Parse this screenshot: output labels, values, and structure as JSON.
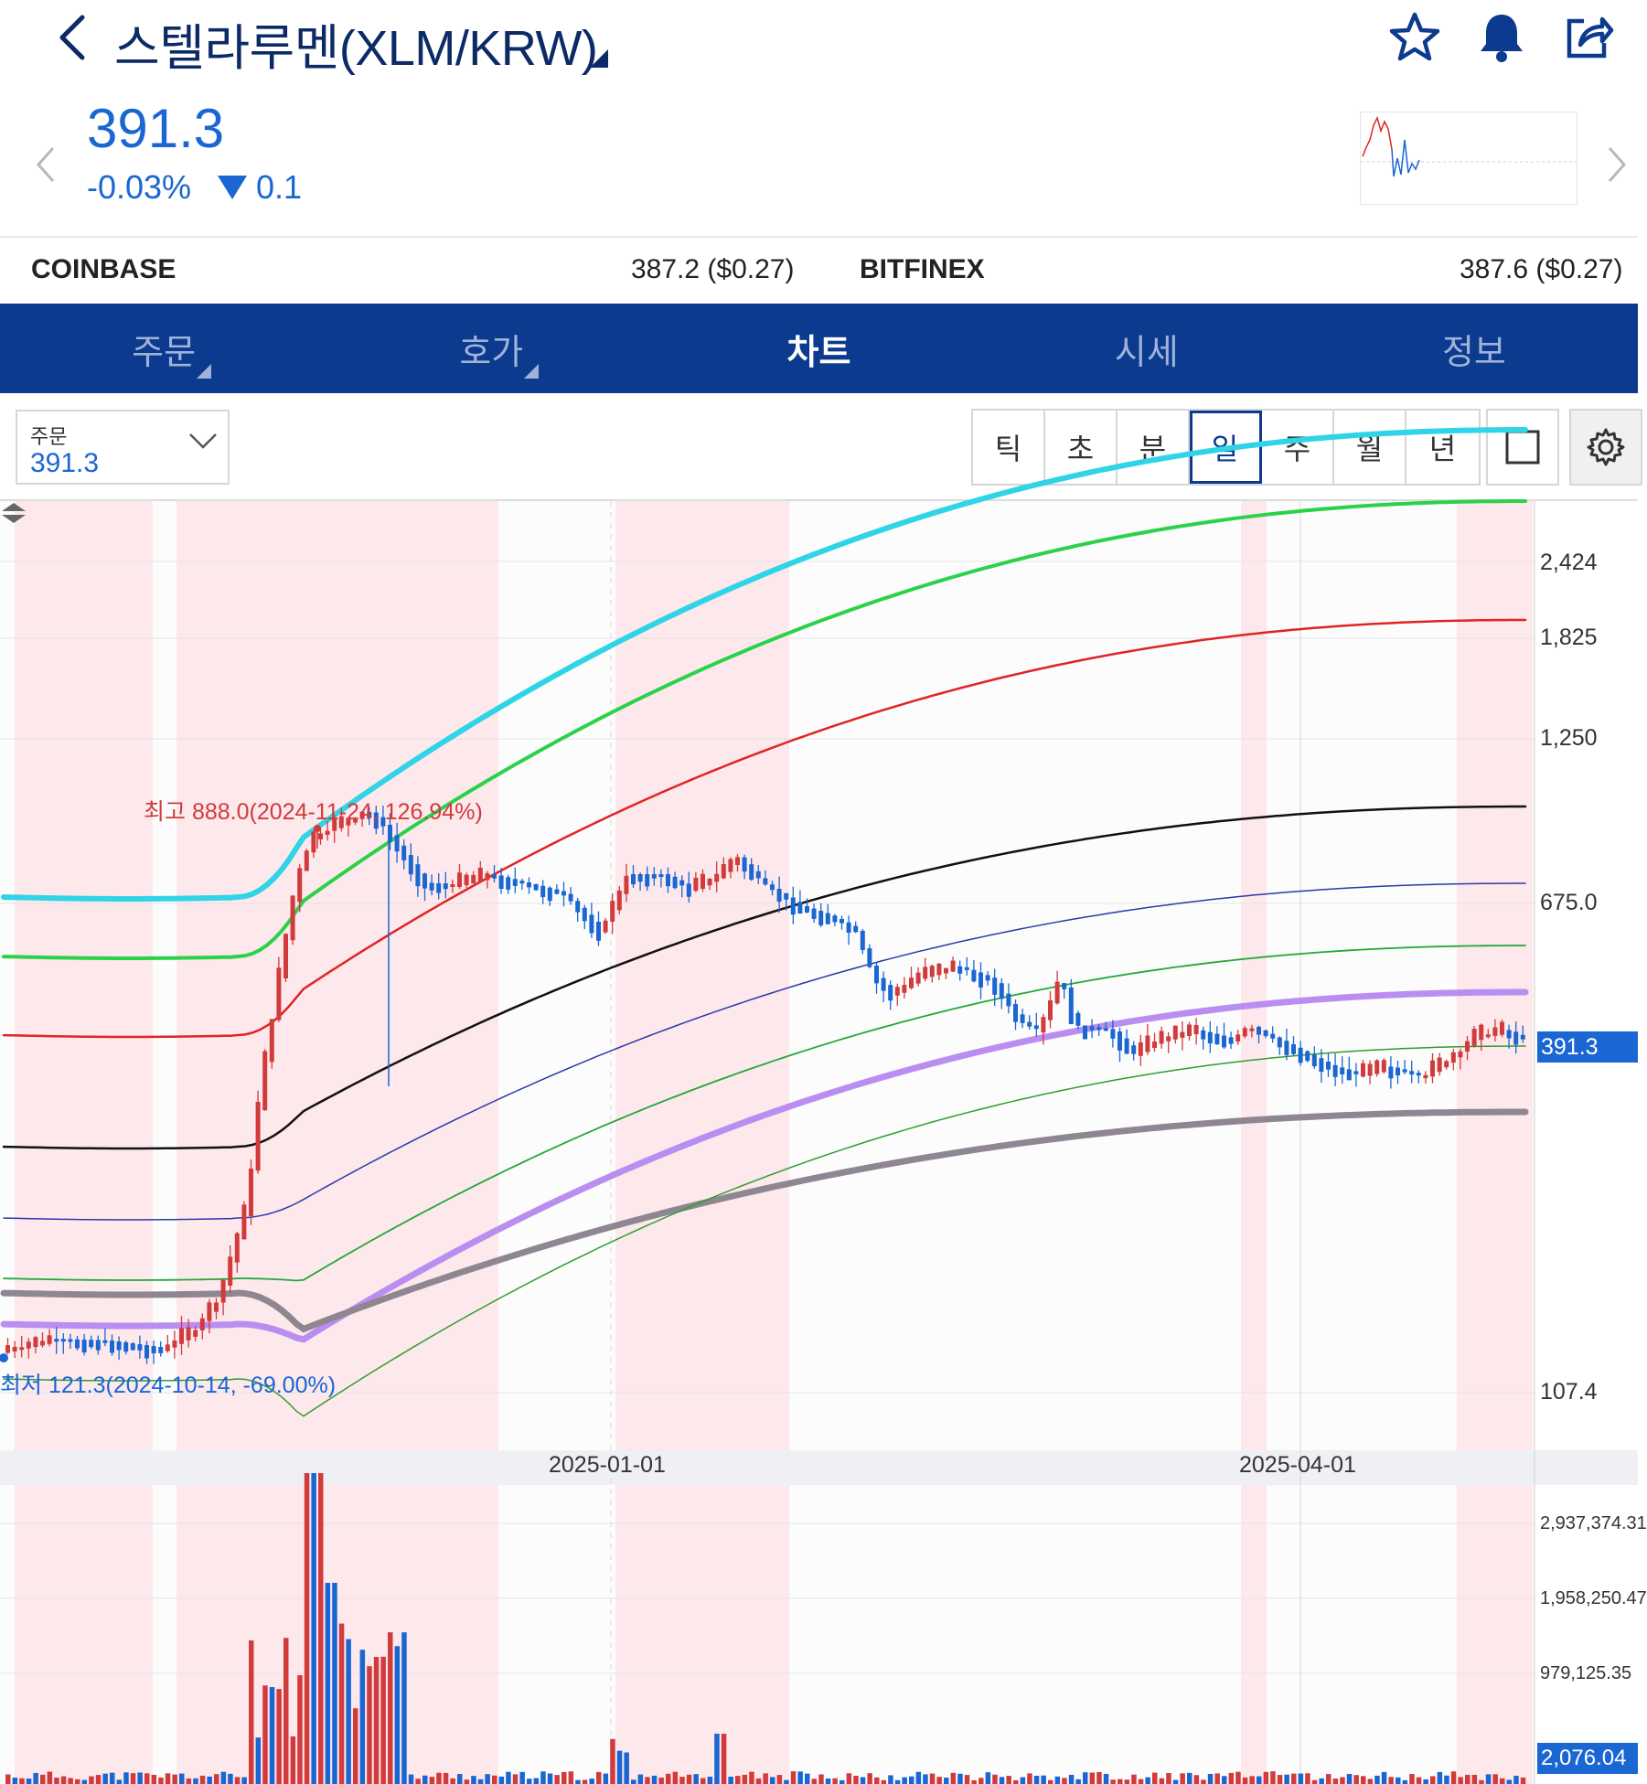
{
  "header": {
    "title": "스텔라루멘(XLM/KRW)",
    "icons": [
      "back-icon",
      "star-icon",
      "bell-icon",
      "share-icon"
    ]
  },
  "price": {
    "current": "391.3",
    "change_pct": "-0.03%",
    "change_abs": "0.1",
    "color": "#1a66d2"
  },
  "exchanges": [
    {
      "name": "COINBASE",
      "value": "387.2 ($0.27)"
    },
    {
      "name": "BITFINEX",
      "value": "387.6 ($0.27)"
    }
  ],
  "tabs": [
    {
      "label": "주문",
      "has_caret": true
    },
    {
      "label": "호가",
      "has_caret": true
    },
    {
      "label": "차트",
      "active": true
    },
    {
      "label": "시세"
    },
    {
      "label": "정보"
    }
  ],
  "toolbar": {
    "order_label": "주문",
    "order_value": "391.3",
    "periods": [
      "틱",
      "초",
      "분",
      "일",
      "주",
      "월",
      "년"
    ],
    "active_period": "일"
  },
  "chart_data": {
    "type": "line",
    "price_axis_ticks": [
      "2,424",
      "1,825",
      "1,250",
      "675.0",
      "107.4"
    ],
    "volume_axis_ticks": [
      "2,937,374.31",
      "1,958,250.47",
      "979,125.35"
    ],
    "current_price_tag": "391.3",
    "current_volume_tag": "2,076.04",
    "x_tick_labels": [
      "2025-01-01",
      "2025-04-01"
    ],
    "annotations": {
      "high": "최고 888.0(2024-11-24, 126.94%)",
      "low": "최저 121.3(2024-10-14, -69.00%)"
    },
    "band_colors": [
      "#2fd4e6",
      "#2ad24a",
      "#e02424",
      "#111111",
      "#2a3aa8",
      "#22a83a",
      "#b98ef0",
      "#8e8690",
      "#2f9e2f"
    ],
    "up_color": "#d23b3b",
    "down_color": "#1a66d2"
  }
}
